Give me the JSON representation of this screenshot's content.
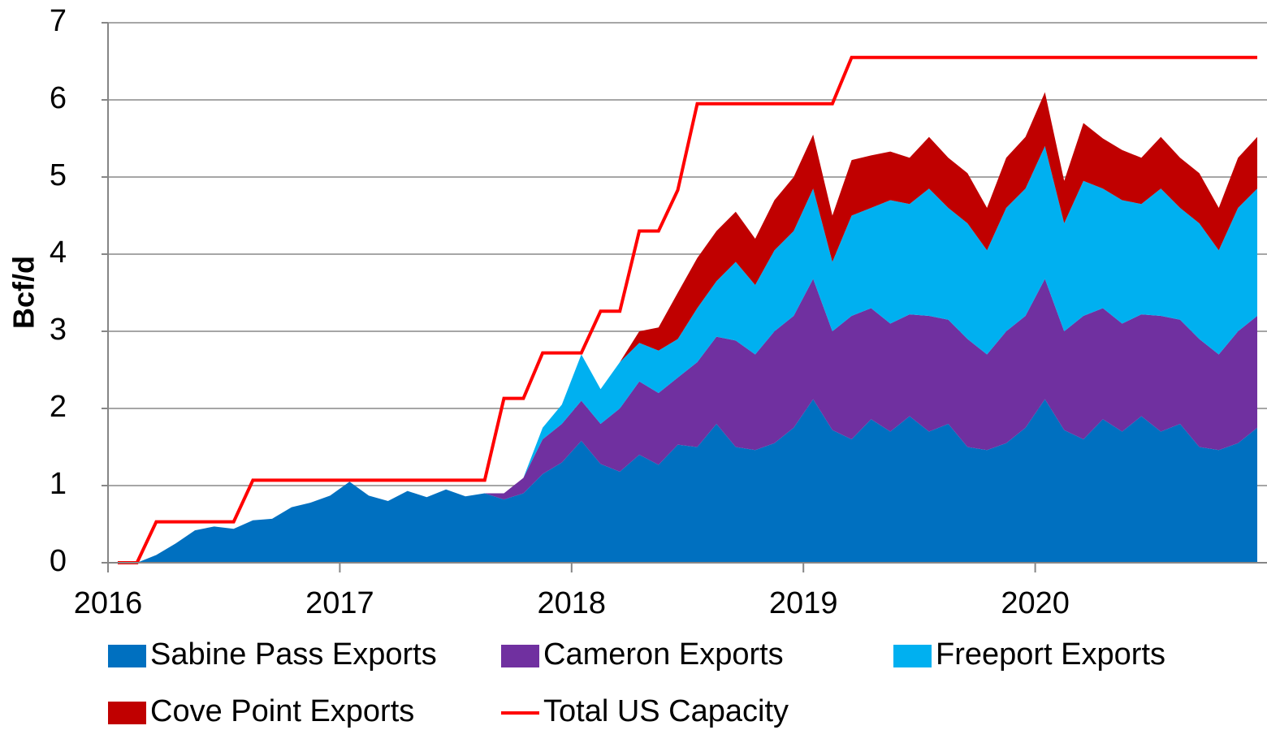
{
  "chart_data": {
    "type": "area",
    "stacked": true,
    "y_label": "Bcf/d",
    "x": [
      2016.042,
      2016.125,
      2016.208,
      2016.292,
      2016.375,
      2016.458,
      2016.542,
      2016.625,
      2016.708,
      2016.792,
      2016.875,
      2016.958,
      2017.042,
      2017.125,
      2017.208,
      2017.292,
      2017.375,
      2017.458,
      2017.542,
      2017.625,
      2017.708,
      2017.792,
      2017.875,
      2017.958,
      2018.042,
      2018.125,
      2018.208,
      2018.292,
      2018.375,
      2018.458,
      2018.542,
      2018.625,
      2018.708,
      2018.792,
      2018.875,
      2018.958,
      2019.042,
      2019.125,
      2019.208,
      2019.292,
      2019.375,
      2019.458,
      2019.542,
      2019.625,
      2019.708,
      2019.792,
      2019.875,
      2019.958,
      2020.042,
      2020.125,
      2020.208,
      2020.292,
      2020.375,
      2020.458,
      2020.542,
      2020.625,
      2020.708,
      2020.792,
      2020.875,
      2020.958
    ],
    "xlim": [
      2016,
      2021
    ],
    "xticks": [
      2016,
      2017,
      2018,
      2019,
      2020
    ],
    "ylim": [
      0,
      7
    ],
    "yticks": [
      0,
      1,
      2,
      3,
      4,
      5,
      6,
      7
    ],
    "grid": true,
    "legend": "bottom",
    "series": [
      {
        "name": "Sabine Pass Exports",
        "color": "#0070c0",
        "values": [
          0,
          0,
          0.1,
          0.25,
          0.42,
          0.47,
          0.44,
          0.55,
          0.57,
          0.72,
          0.78,
          0.87,
          1.05,
          0.87,
          0.8,
          0.93,
          0.85,
          0.95,
          0.86,
          0.9,
          0.82,
          0.9,
          1.15,
          1.3,
          1.58,
          1.28,
          1.18,
          1.4,
          1.27,
          1.53,
          1.5,
          1.8,
          1.5,
          1.46,
          1.55,
          1.75,
          2.12,
          1.72,
          1.6,
          1.86,
          1.7,
          1.9,
          1.7,
          1.8,
          1.5,
          1.46,
          1.55,
          1.75,
          2.12,
          1.72,
          1.6,
          1.86,
          1.7,
          1.9,
          1.7,
          1.8,
          1.5,
          1.46,
          1.55,
          1.75
        ]
      },
      {
        "name": "Cameron Exports",
        "color": "#7030a0",
        "values": [
          0,
          0,
          0,
          0,
          0,
          0,
          0,
          0,
          0,
          0,
          0,
          0,
          0,
          0,
          0,
          0,
          0,
          0,
          0,
          0,
          0.08,
          0.2,
          0.45,
          0.5,
          0.52,
          0.52,
          0.82,
          0.95,
          0.93,
          0.87,
          1.1,
          1.13,
          1.38,
          1.24,
          1.45,
          1.45,
          1.56,
          1.28,
          1.6,
          1.44,
          1.4,
          1.32,
          1.5,
          1.35,
          1.4,
          1.24,
          1.45,
          1.45,
          1.56,
          1.28,
          1.6,
          1.44,
          1.4,
          1.32,
          1.5,
          1.35,
          1.4,
          1.24,
          1.45,
          1.45
        ]
      },
      {
        "name": "Freeport Exports",
        "color": "#00b0f0",
        "values": [
          0,
          0,
          0,
          0,
          0,
          0,
          0,
          0,
          0,
          0,
          0,
          0,
          0,
          0,
          0,
          0,
          0,
          0,
          0,
          0,
          0,
          0,
          0.15,
          0.25,
          0.6,
          0.45,
          0.6,
          0.5,
          0.55,
          0.5,
          0.7,
          0.72,
          1.02,
          0.9,
          1.05,
          1.1,
          1.17,
          0.9,
          1.3,
          1.3,
          1.6,
          1.43,
          1.65,
          1.45,
          1.5,
          1.35,
          1.6,
          1.65,
          1.72,
          1.4,
          1.75,
          1.55,
          1.6,
          1.43,
          1.65,
          1.45,
          1.5,
          1.35,
          1.6,
          1.65
        ]
      },
      {
        "name": "Cove Point Exports",
        "color": "#c00000",
        "values": [
          0,
          0,
          0,
          0,
          0,
          0,
          0,
          0,
          0,
          0,
          0,
          0,
          0,
          0,
          0,
          0,
          0,
          0,
          0,
          0,
          0,
          0,
          0,
          0,
          0,
          0,
          0,
          0.15,
          0.3,
          0.6,
          0.65,
          0.65,
          0.65,
          0.6,
          0.65,
          0.7,
          0.7,
          0.6,
          0.72,
          0.68,
          0.63,
          0.6,
          0.67,
          0.65,
          0.65,
          0.55,
          0.65,
          0.67,
          0.7,
          0.55,
          0.75,
          0.65,
          0.65,
          0.6,
          0.67,
          0.65,
          0.65,
          0.55,
          0.65,
          0.67
        ]
      },
      {
        "name": "Total US Capacity",
        "type": "line",
        "color": "#ff0000",
        "values": [
          0,
          0,
          0.53,
          0.53,
          0.53,
          0.53,
          0.53,
          1.07,
          1.07,
          1.07,
          1.07,
          1.07,
          1.07,
          1.07,
          1.07,
          1.07,
          1.07,
          1.07,
          1.07,
          1.07,
          2.13,
          2.13,
          2.72,
          2.72,
          2.72,
          3.26,
          3.26,
          4.3,
          4.3,
          4.83,
          5.95,
          5.95,
          5.95,
          5.95,
          5.95,
          5.95,
          5.95,
          5.95,
          6.55,
          6.55,
          6.55,
          6.55,
          6.55,
          6.55,
          6.55,
          6.55,
          6.55,
          6.55,
          6.55,
          6.55,
          6.55,
          6.55,
          6.55,
          6.55,
          6.55,
          6.55,
          6.55,
          6.55,
          6.55,
          6.55
        ]
      }
    ]
  }
}
